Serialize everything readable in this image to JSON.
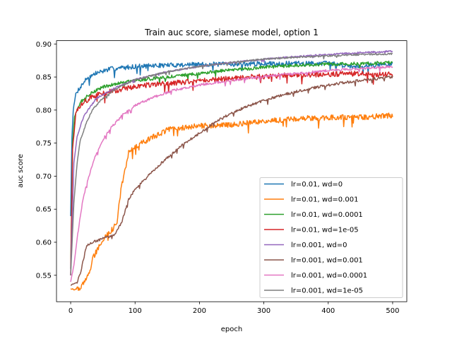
{
  "chart_data": {
    "type": "line",
    "title": "Train auc score, siamese model, option 1",
    "xlabel": "epoch",
    "ylabel": "auc score",
    "xlim": [
      -22,
      522
    ],
    "ylim": [
      0.51,
      0.905
    ],
    "xticks": [
      0,
      100,
      200,
      300,
      400,
      500
    ],
    "yticks": [
      0.55,
      0.6,
      0.65,
      0.7,
      0.75,
      0.8,
      0.85,
      0.9
    ],
    "ytick_labels": [
      "0.55",
      "0.60",
      "0.65",
      "0.70",
      "0.75",
      "0.80",
      "0.85",
      "0.90"
    ],
    "grid": false,
    "legend_position": "lower-right",
    "series": [
      {
        "name": "lr=0.01, wd=0",
        "color": "#1f77b4",
        "noise": 0.0035,
        "points": [
          [
            0,
            0.64
          ],
          [
            2,
            0.76
          ],
          [
            4,
            0.8
          ],
          [
            8,
            0.825
          ],
          [
            15,
            0.835
          ],
          [
            25,
            0.848
          ],
          [
            40,
            0.856
          ],
          [
            60,
            0.862
          ],
          [
            100,
            0.866
          ],
          [
            150,
            0.868
          ],
          [
            200,
            0.869
          ],
          [
            300,
            0.87
          ],
          [
            400,
            0.871
          ],
          [
            440,
            0.866
          ],
          [
            460,
            0.868
          ],
          [
            500,
            0.869
          ]
        ]
      },
      {
        "name": "lr=0.01, wd=0.001",
        "color": "#ff7f0e",
        "noise": 0.004,
        "points": [
          [
            0,
            0.53
          ],
          [
            5,
            0.528
          ],
          [
            15,
            0.53
          ],
          [
            25,
            0.545
          ],
          [
            30,
            0.558
          ],
          [
            35,
            0.577
          ],
          [
            45,
            0.595
          ],
          [
            55,
            0.61
          ],
          [
            65,
            0.62
          ],
          [
            72,
            0.63
          ],
          [
            78,
            0.68
          ],
          [
            85,
            0.71
          ],
          [
            90,
            0.735
          ],
          [
            100,
            0.745
          ],
          [
            120,
            0.755
          ],
          [
            150,
            0.77
          ],
          [
            180,
            0.774
          ],
          [
            200,
            0.776
          ],
          [
            250,
            0.778
          ],
          [
            300,
            0.783
          ],
          [
            350,
            0.787
          ],
          [
            400,
            0.789
          ],
          [
            450,
            0.789
          ],
          [
            500,
            0.792
          ]
        ]
      },
      {
        "name": "lr=0.01, wd=0.0001",
        "color": "#2ca02c",
        "noise": 0.0025,
        "points": [
          [
            0,
            0.56
          ],
          [
            3,
            0.75
          ],
          [
            6,
            0.79
          ],
          [
            15,
            0.812
          ],
          [
            30,
            0.825
          ],
          [
            50,
            0.835
          ],
          [
            80,
            0.842
          ],
          [
            120,
            0.847
          ],
          [
            170,
            0.852
          ],
          [
            220,
            0.858
          ],
          [
            270,
            0.862
          ],
          [
            320,
            0.866
          ],
          [
            380,
            0.869
          ],
          [
            440,
            0.87
          ],
          [
            500,
            0.872
          ]
        ]
      },
      {
        "name": "lr=0.01, wd=1e-05",
        "color": "#d62728",
        "noise": 0.004,
        "points": [
          [
            0,
            0.55
          ],
          [
            3,
            0.74
          ],
          [
            8,
            0.795
          ],
          [
            20,
            0.812
          ],
          [
            40,
            0.823
          ],
          [
            70,
            0.83
          ],
          [
            110,
            0.837
          ],
          [
            160,
            0.841
          ],
          [
            210,
            0.845
          ],
          [
            260,
            0.849
          ],
          [
            320,
            0.852
          ],
          [
            380,
            0.854
          ],
          [
            440,
            0.855
          ],
          [
            500,
            0.854
          ]
        ]
      },
      {
        "name": "lr=0.001, wd=0",
        "color": "#9467bd",
        "noise": 0.0012,
        "points": [
          [
            0,
            0.55
          ],
          [
            5,
            0.72
          ],
          [
            10,
            0.76
          ],
          [
            20,
            0.79
          ],
          [
            40,
            0.818
          ],
          [
            70,
            0.834
          ],
          [
            100,
            0.846
          ],
          [
            150,
            0.858
          ],
          [
            200,
            0.866
          ],
          [
            250,
            0.872
          ],
          [
            300,
            0.877
          ],
          [
            350,
            0.881
          ],
          [
            400,
            0.884
          ],
          [
            450,
            0.887
          ],
          [
            500,
            0.889
          ]
        ]
      },
      {
        "name": "lr=0.001, wd=0.001",
        "color": "#8c564b",
        "noise": 0.002,
        "points": [
          [
            0,
            0.535
          ],
          [
            10,
            0.54
          ],
          [
            15,
            0.553
          ],
          [
            20,
            0.575
          ],
          [
            25,
            0.595
          ],
          [
            35,
            0.6
          ],
          [
            50,
            0.606
          ],
          [
            60,
            0.608
          ],
          [
            70,
            0.613
          ],
          [
            80,
            0.633
          ],
          [
            90,
            0.665
          ],
          [
            100,
            0.68
          ],
          [
            110,
            0.69
          ],
          [
            130,
            0.71
          ],
          [
            150,
            0.728
          ],
          [
            170,
            0.745
          ],
          [
            200,
            0.765
          ],
          [
            230,
            0.785
          ],
          [
            260,
            0.8
          ],
          [
            300,
            0.815
          ],
          [
            350,
            0.828
          ],
          [
            400,
            0.838
          ],
          [
            450,
            0.845
          ],
          [
            500,
            0.85
          ]
        ]
      },
      {
        "name": "lr=0.001, wd=0.0001",
        "color": "#e377c2",
        "noise": 0.0018,
        "points": [
          [
            0,
            0.54
          ],
          [
            5,
            0.565
          ],
          [
            10,
            0.605
          ],
          [
            15,
            0.64
          ],
          [
            20,
            0.67
          ],
          [
            30,
            0.705
          ],
          [
            40,
            0.735
          ],
          [
            50,
            0.755
          ],
          [
            60,
            0.77
          ],
          [
            80,
            0.792
          ],
          [
            100,
            0.807
          ],
          [
            130,
            0.82
          ],
          [
            160,
            0.83
          ],
          [
            200,
            0.838
          ],
          [
            250,
            0.845
          ],
          [
            300,
            0.851
          ],
          [
            350,
            0.855
          ],
          [
            400,
            0.86
          ],
          [
            450,
            0.863
          ],
          [
            500,
            0.866
          ]
        ]
      },
      {
        "name": "lr=0.001, wd=1e-05",
        "color": "#7f7f7f",
        "noise": 0.0012,
        "points": [
          [
            0,
            0.55
          ],
          [
            5,
            0.66
          ],
          [
            10,
            0.72
          ],
          [
            15,
            0.755
          ],
          [
            25,
            0.782
          ],
          [
            35,
            0.802
          ],
          [
            50,
            0.818
          ],
          [
            70,
            0.832
          ],
          [
            100,
            0.846
          ],
          [
            150,
            0.858
          ],
          [
            200,
            0.866
          ],
          [
            250,
            0.872
          ],
          [
            300,
            0.877
          ],
          [
            350,
            0.88
          ],
          [
            400,
            0.882
          ],
          [
            450,
            0.884
          ],
          [
            500,
            0.885
          ]
        ]
      }
    ]
  }
}
